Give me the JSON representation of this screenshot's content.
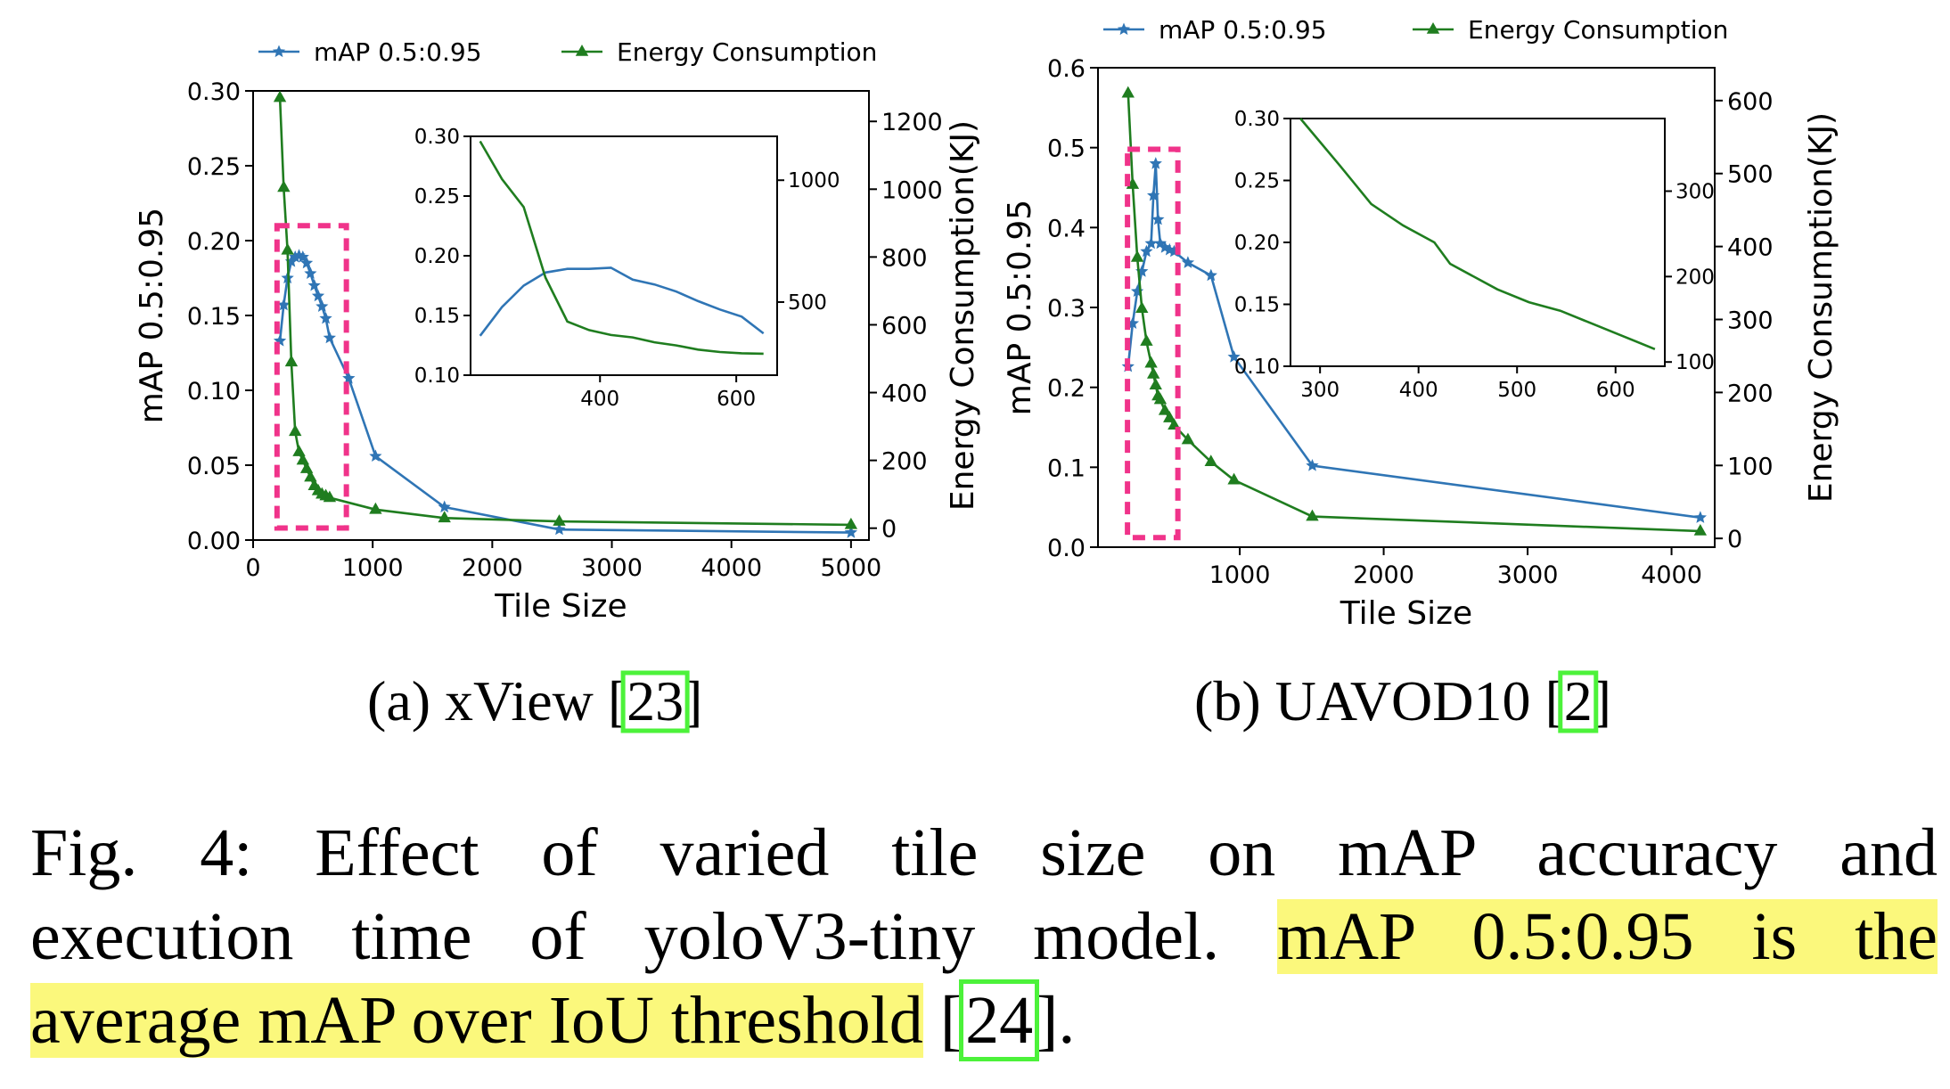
{
  "colors": {
    "map": "#2f75b5",
    "energy": "#1f7d1f",
    "highlight_box": "#f0338a",
    "ref_box": "#4cf23a",
    "highlight": "#fbf87c"
  },
  "chart_data": [
    {
      "type": "line",
      "sublabel": "(a) xView [",
      "ref": "23",
      "ref_close": "]",
      "xlabel": "Tile Size",
      "ylabel": "mAP 0.5:0.95",
      "y2label": "Energy Consumption(KJ)",
      "legend": [
        "mAP 0.5:0.95",
        "Energy Consumption"
      ],
      "xlim": [
        0,
        5150
      ],
      "ylim": [
        0,
        0.3
      ],
      "y2lim": [
        -35,
        1290
      ],
      "xticks": [
        0,
        1000,
        2000,
        3000,
        4000,
        5000
      ],
      "yticks": [
        0.0,
        0.05,
        0.1,
        0.15,
        0.2,
        0.25,
        0.3
      ],
      "y2ticks": [
        0,
        200,
        400,
        600,
        800,
        1000,
        1200
      ],
      "series": [
        {
          "name": "mAP 0.5:0.95",
          "axis": "left",
          "marker": "star",
          "x": [
            224,
            256,
            288,
            320,
            352,
            384,
            416,
            448,
            480,
            512,
            544,
            576,
            608,
            640,
            800,
            1024,
            1600,
            2560,
            5000
          ],
          "y": [
            0.133,
            0.157,
            0.175,
            0.186,
            0.189,
            0.19,
            0.189,
            0.185,
            0.178,
            0.17,
            0.163,
            0.156,
            0.148,
            0.135,
            0.108,
            0.056,
            0.022,
            0.007,
            0.005
          ]
        },
        {
          "name": "Energy Consumption",
          "axis": "right",
          "marker": "triangle",
          "x": [
            224,
            256,
            288,
            320,
            352,
            384,
            416,
            448,
            480,
            512,
            544,
            576,
            608,
            640,
            1024,
            1600,
            2560,
            5000
          ],
          "y": [
            1270,
            1005,
            820,
            490,
            285,
            225,
            200,
            175,
            150,
            125,
            110,
            100,
            95,
            90,
            55,
            30,
            20,
            10
          ]
        }
      ],
      "highlight_range": {
        "x": [
          200,
          780
        ],
        "y": [
          0.008,
          0.21
        ]
      },
      "inset": {
        "xlim": [
          210,
          660
        ],
        "ylim": [
          0.1,
          0.3
        ],
        "y2lim": [
          200,
          1180
        ],
        "xticks": [
          400,
          600
        ],
        "yticks": [
          0.1,
          0.15,
          0.2,
          0.25,
          0.3
        ],
        "y2ticks": [
          500,
          1000
        ],
        "map": {
          "x": [
            224,
            256,
            288,
            320,
            352,
            384,
            416,
            448,
            480,
            512,
            544,
            576,
            608,
            640
          ],
          "y": [
            0.133,
            0.157,
            0.175,
            0.186,
            0.189,
            0.189,
            0.19,
            0.18,
            0.176,
            0.17,
            0.162,
            0.155,
            0.149,
            0.135
          ]
        },
        "energy": {
          "x": [
            224,
            256,
            288,
            320,
            352,
            384,
            416,
            448,
            480,
            512,
            544,
            576,
            608,
            640
          ],
          "y": [
            1160,
            1005,
            890,
            600,
            420,
            385,
            365,
            355,
            335,
            322,
            305,
            295,
            290,
            288
          ]
        }
      }
    },
    {
      "type": "line",
      "sublabel": "(b) UAVOD10 [",
      "ref": "2",
      "ref_close": "]",
      "xlabel": "Tile Size",
      "ylabel": "mAP 0.5:0.95",
      "y2label": "Energy Consumption(KJ)",
      "legend": [
        "mAP 0.5:0.95",
        "Energy Consumption"
      ],
      "xlim": [
        15,
        4300
      ],
      "ylim": [
        0,
        0.6
      ],
      "y2lim": [
        -12,
        645
      ],
      "xticks": [
        1000,
        2000,
        3000,
        4000
      ],
      "yticks": [
        0.0,
        0.1,
        0.2,
        0.3,
        0.4,
        0.5,
        0.6
      ],
      "y2ticks": [
        0,
        100,
        200,
        300,
        400,
        500,
        600
      ],
      "series": [
        {
          "name": "mAP 0.5:0.95",
          "axis": "left",
          "marker": "star",
          "x": [
            224,
            256,
            288,
            320,
            352,
            384,
            400,
            416,
            432,
            448,
            480,
            512,
            544,
            640,
            800,
            960,
            1504,
            4200
          ],
          "y": [
            0.226,
            0.28,
            0.32,
            0.345,
            0.37,
            0.38,
            0.44,
            0.48,
            0.41,
            0.38,
            0.375,
            0.372,
            0.37,
            0.356,
            0.34,
            0.238,
            0.102,
            0.037
          ]
        },
        {
          "name": "Energy Consumption",
          "axis": "right",
          "marker": "triangle",
          "x": [
            224,
            256,
            288,
            320,
            352,
            384,
            400,
            416,
            432,
            448,
            480,
            512,
            544,
            640,
            800,
            960,
            1504,
            4200
          ],
          "y": [
            610,
            485,
            385,
            315,
            270,
            240,
            225,
            210,
            195,
            190,
            175,
            165,
            155,
            135,
            105,
            80,
            30,
            10
          ]
        }
      ],
      "highlight_range": {
        "x": [
          220,
          570
        ],
        "y": [
          0.012,
          0.498
        ]
      },
      "inset": {
        "xlim": [
          270,
          650
        ],
        "ylim": [
          0.1,
          0.3
        ],
        "y2lim": [
          95,
          385
        ],
        "xticks": [
          300,
          400,
          500,
          600
        ],
        "yticks": [
          0.1,
          0.15,
          0.2,
          0.25,
          0.3
        ],
        "y2ticks": [
          100,
          200,
          300
        ],
        "energy": {
          "x": [
            280,
            320,
            352,
            384,
            416,
            432,
            480,
            512,
            544,
            576,
            608,
            640
          ],
          "y": [
            385,
            330,
            285,
            260,
            240,
            215,
            185,
            170,
            160,
            145,
            130,
            115
          ]
        }
      }
    }
  ],
  "caption": {
    "line1": "Fig. 4: Effect of varied tile size on mAP accuracy and",
    "line2_plain": "execution time of yoloV3-tiny model. ",
    "line2_hl": "mAP 0.5:0.95 is the",
    "line3_hl": "average mAP over IoU threshold",
    "line3_open": " [",
    "line3_ref": "24",
    "line3_close": "]."
  }
}
